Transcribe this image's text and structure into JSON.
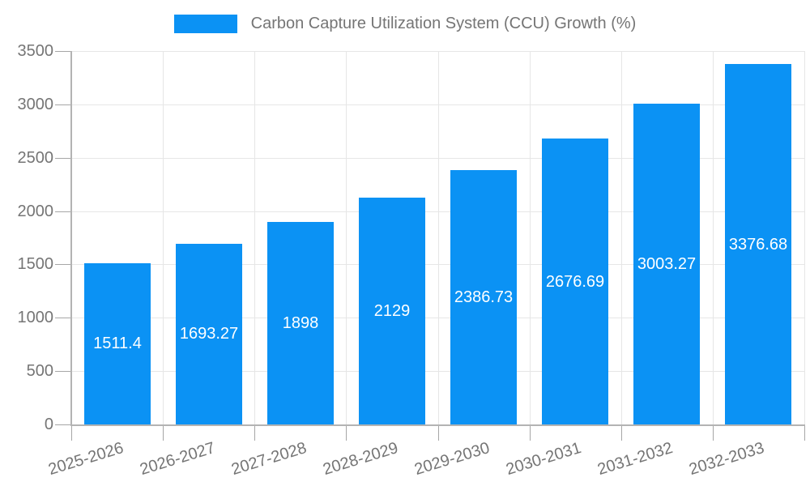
{
  "legend": {
    "label": "Carbon Capture Utilization System (CCU) Growth (%)"
  },
  "chart_data": {
    "type": "bar",
    "title": "Carbon Capture Utilization System (CCU) Growth (%)",
    "categories": [
      "2025-2026",
      "2026-2027",
      "2027-2028",
      "2028-2029",
      "2029-2030",
      "2030-2031",
      "2031-2032",
      "2032-2033"
    ],
    "values": [
      1511.4,
      1693.27,
      1898,
      2129,
      2386.73,
      2676.69,
      3003.27,
      3376.68
    ],
    "value_labels": [
      "1511.4",
      "1693.27",
      "1898",
      "2129",
      "2386.73",
      "2676.69",
      "3003.27",
      "3376.68"
    ],
    "xlabel": "",
    "ylabel": "",
    "ylim": [
      0,
      3500
    ],
    "yticks": [
      0,
      500,
      1000,
      1500,
      2000,
      2500,
      3000,
      3500
    ],
    "ytick_labels": [
      "0",
      "500",
      "1000",
      "1500",
      "2000",
      "2500",
      "3000",
      "3500"
    ],
    "grid": true,
    "legend_position": "top-center",
    "colors": {
      "bar": "#0b92f4",
      "value_label": "#ffffff",
      "axis": "#b3b3b3",
      "tick": "#a6a6a6",
      "grid": "#e6e6e6",
      "tick_text": "#757575"
    }
  }
}
